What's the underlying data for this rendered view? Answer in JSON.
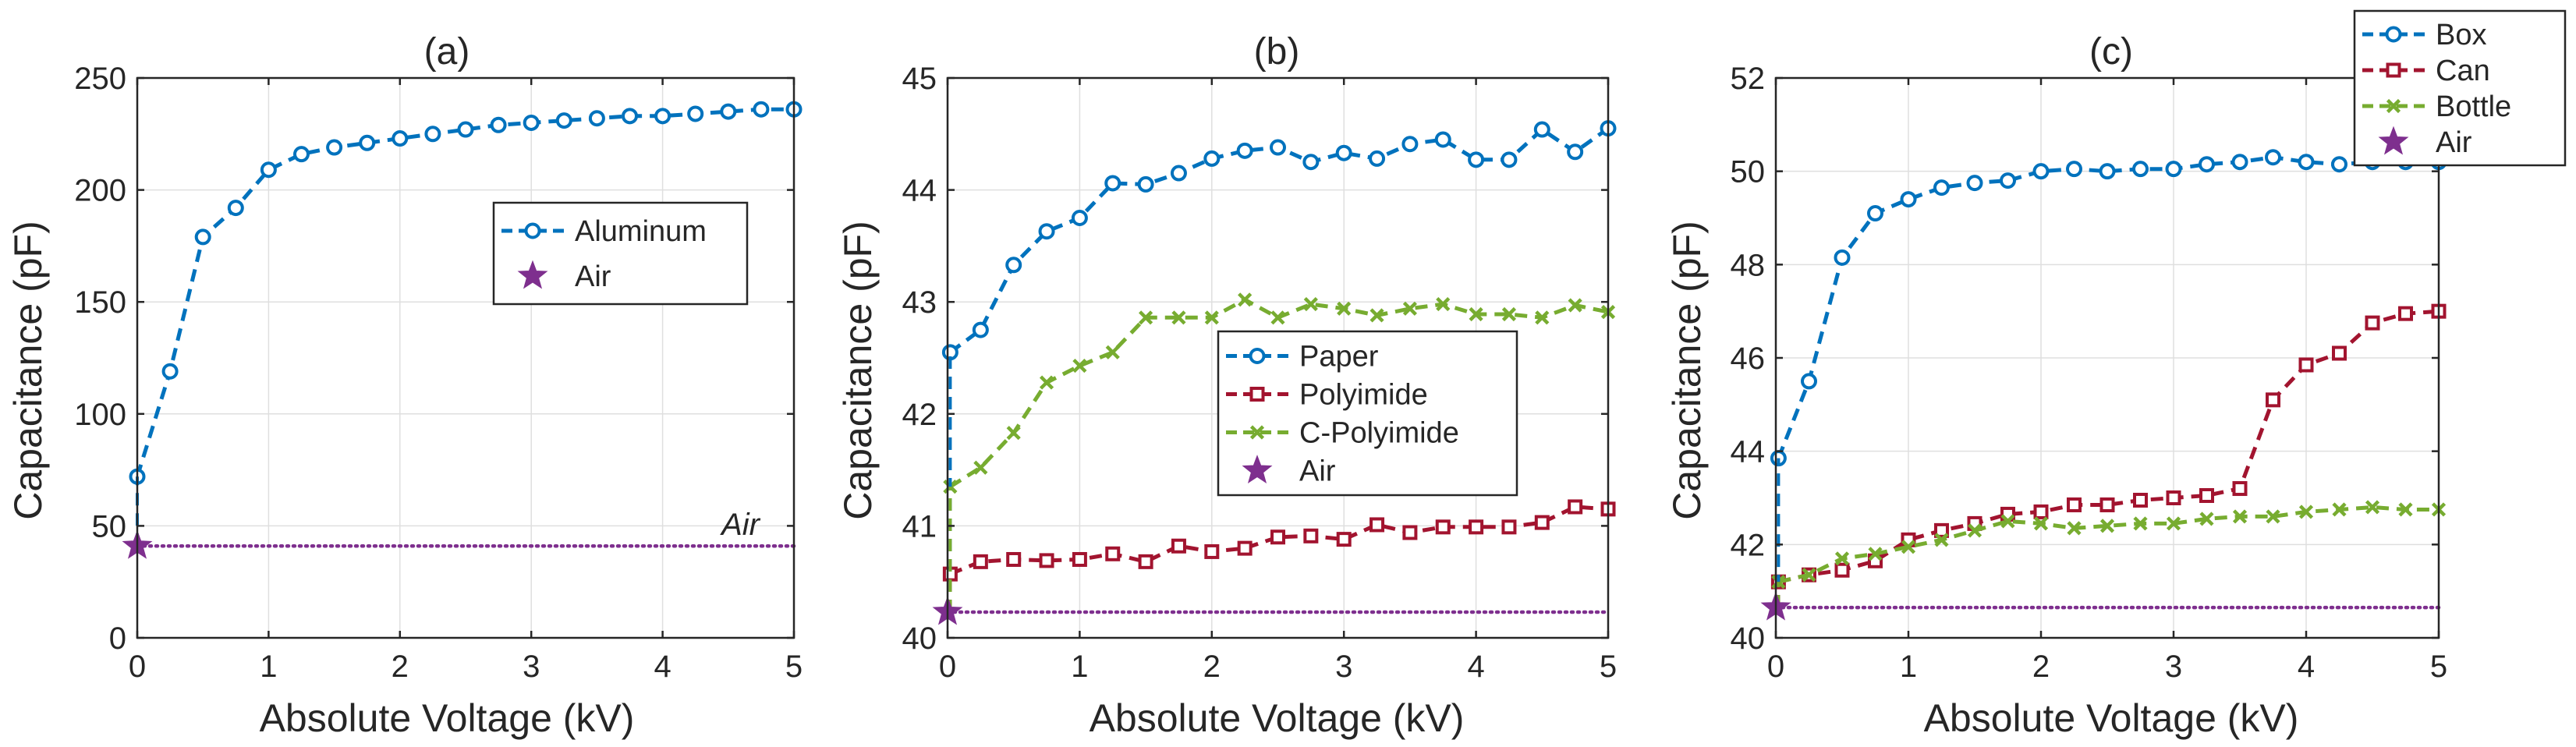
{
  "chart_data": [
    {
      "type": "line",
      "title": "(a)",
      "xlabel": "Absolute Voltage (kV)",
      "ylabel": "Capacitance (pF)",
      "xlim": [
        0,
        5
      ],
      "ylim": [
        0,
        250
      ],
      "xticks": [
        "0",
        "1",
        "2",
        "3",
        "4",
        "5"
      ],
      "yticks": [
        "0",
        "50",
        "100",
        "150",
        "200",
        "250"
      ],
      "grid": true,
      "legend_position": "upper-right-inside",
      "series": [
        {
          "name": "Aluminum",
          "color": "#0072BD",
          "marker": "circle",
          "line": "dashed",
          "x": [
            0,
            0.25,
            0.5,
            0.75,
            1,
            1.25,
            1.5,
            1.75,
            2,
            2.25,
            2.5,
            2.75,
            3,
            3.25,
            3.5,
            3.75,
            4,
            4.25,
            4.5,
            4.75,
            5
          ],
          "y": [
            72,
            119,
            179,
            192,
            209,
            216,
            219,
            221,
            223,
            225,
            227,
            229,
            230,
            231,
            232,
            233,
            233,
            234,
            235,
            236,
            236
          ]
        }
      ],
      "air": {
        "name": "Air",
        "value": 41,
        "color": "#7E2F8E",
        "marker": "star",
        "line": "dotted"
      },
      "annotation": "Air"
    },
    {
      "type": "line",
      "title": "(b)",
      "xlabel": "Absolute Voltage (kV)",
      "ylabel": "Capacitance (pF)",
      "xlim": [
        0,
        5
      ],
      "ylim": [
        40,
        45
      ],
      "xticks": [
        "0",
        "1",
        "2",
        "3",
        "4",
        "5"
      ],
      "yticks": [
        "40",
        "41",
        "42",
        "43",
        "44",
        "45"
      ],
      "grid": true,
      "legend_position": "center-right-inside",
      "series": [
        {
          "name": "Paper",
          "color": "#0072BD",
          "marker": "circle",
          "line": "dashed",
          "x": [
            0.02,
            0.25,
            0.5,
            0.75,
            1,
            1.25,
            1.5,
            1.75,
            2,
            2.25,
            2.5,
            2.75,
            3,
            3.25,
            3.5,
            3.75,
            4,
            4.25,
            4.5,
            4.75,
            5
          ],
          "y": [
            42.55,
            42.75,
            43.33,
            43.63,
            43.75,
            44.06,
            44.05,
            44.15,
            44.28,
            44.35,
            44.38,
            44.25,
            44.33,
            44.28,
            44.41,
            44.45,
            44.27,
            44.27,
            44.54,
            44.34,
            44.55
          ]
        },
        {
          "name": "Polyimide",
          "color": "#A2142F",
          "marker": "square",
          "line": "dashed",
          "x": [
            0.02,
            0.25,
            0.5,
            0.75,
            1,
            1.25,
            1.5,
            1.75,
            2,
            2.25,
            2.5,
            2.75,
            3,
            3.25,
            3.5,
            3.75,
            4,
            4.25,
            4.5,
            4.75,
            5
          ],
          "y": [
            40.57,
            40.68,
            40.7,
            40.69,
            40.7,
            40.75,
            40.68,
            40.82,
            40.77,
            40.8,
            40.9,
            40.91,
            40.88,
            41.01,
            40.94,
            40.99,
            40.99,
            40.99,
            41.03,
            41.17,
            41.15
          ]
        },
        {
          "name": "C-Polyimide",
          "color": "#77AC30",
          "marker": "x",
          "line": "dashed",
          "x": [
            0.02,
            0.25,
            0.5,
            0.75,
            1,
            1.25,
            1.5,
            1.75,
            2,
            2.25,
            2.5,
            2.75,
            3,
            3.25,
            3.5,
            3.75,
            4,
            4.25,
            4.5,
            4.75,
            5
          ],
          "y": [
            41.35,
            41.52,
            41.83,
            42.28,
            42.43,
            42.55,
            42.86,
            42.86,
            42.86,
            43.02,
            42.86,
            42.98,
            42.94,
            42.88,
            42.94,
            42.98,
            42.89,
            42.89,
            42.86,
            42.97,
            42.91
          ]
        }
      ],
      "air": {
        "name": "Air",
        "value": 40.23,
        "color": "#7E2F8E",
        "marker": "star",
        "line": "dotted"
      }
    },
    {
      "type": "line",
      "title": "(c)",
      "xlabel": "Absolute Voltage (kV)",
      "ylabel": "Capacitance (pF)",
      "xlim": [
        0,
        5
      ],
      "ylim": [
        40,
        52
      ],
      "xticks": [
        "0",
        "1",
        "2",
        "3",
        "4",
        "5"
      ],
      "yticks": [
        "40",
        "42",
        "44",
        "46",
        "48",
        "50",
        "52"
      ],
      "grid": true,
      "legend_position": "top-right-outside",
      "series": [
        {
          "name": "Box",
          "color": "#0072BD",
          "marker": "circle",
          "line": "dashed",
          "x": [
            0.02,
            0.25,
            0.5,
            0.75,
            1,
            1.25,
            1.5,
            1.75,
            2,
            2.25,
            2.5,
            2.75,
            3,
            3.25,
            3.5,
            3.75,
            4,
            4.25,
            4.5,
            4.75,
            5
          ],
          "y": [
            43.85,
            45.5,
            48.15,
            49.1,
            49.4,
            49.65,
            49.75,
            49.8,
            50.0,
            50.05,
            50.0,
            50.05,
            50.05,
            50.15,
            50.2,
            50.3,
            50.2,
            50.15,
            50.2,
            50.2,
            50.2
          ]
        },
        {
          "name": "Can",
          "color": "#A2142F",
          "marker": "square",
          "line": "dashed",
          "x": [
            0.02,
            0.25,
            0.5,
            0.75,
            1,
            1.25,
            1.5,
            1.75,
            2,
            2.25,
            2.5,
            2.75,
            3,
            3.25,
            3.5,
            3.75,
            4,
            4.25,
            4.5,
            4.75,
            5
          ],
          "y": [
            41.2,
            41.35,
            41.45,
            41.65,
            42.1,
            42.3,
            42.45,
            42.65,
            42.7,
            42.85,
            42.85,
            42.95,
            43.0,
            43.05,
            43.2,
            45.1,
            45.85,
            46.1,
            46.75,
            46.95,
            47.0
          ]
        },
        {
          "name": "Bottle",
          "color": "#77AC30",
          "marker": "x",
          "line": "dashed",
          "x": [
            0.02,
            0.25,
            0.5,
            0.75,
            1,
            1.25,
            1.5,
            1.75,
            2,
            2.25,
            2.5,
            2.75,
            3,
            3.25,
            3.5,
            3.75,
            4,
            4.25,
            4.5,
            4.75,
            5
          ],
          "y": [
            41.2,
            41.35,
            41.7,
            41.8,
            41.95,
            42.1,
            42.3,
            42.5,
            42.45,
            42.35,
            42.4,
            42.45,
            42.45,
            42.55,
            42.6,
            42.6,
            42.7,
            42.75,
            42.8,
            42.75,
            42.75
          ]
        }
      ],
      "air": {
        "name": "Air",
        "value": 40.65,
        "color": "#7E2F8E",
        "marker": "star",
        "line": "dotted"
      }
    }
  ]
}
